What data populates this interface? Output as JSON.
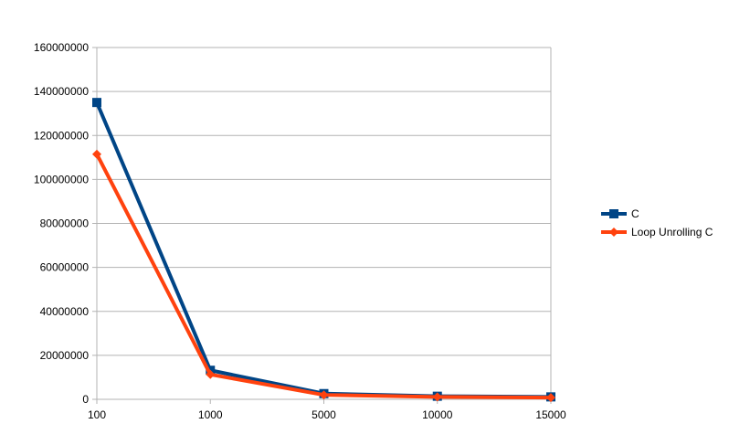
{
  "chart_data": {
    "type": "line",
    "title": "",
    "xlabel": "",
    "ylabel": "",
    "categories": [
      "100",
      "1000",
      "5000",
      "10000",
      "15000"
    ],
    "ylim": [
      0,
      160000000
    ],
    "yticks": [
      0,
      20000000,
      40000000,
      60000000,
      80000000,
      100000000,
      120000000,
      140000000,
      160000000
    ],
    "ytick_labels": [
      "0",
      "20000000",
      "40000000",
      "60000000",
      "80000000",
      "100000000",
      "120000000",
      "140000000",
      "160000000"
    ],
    "grid": true,
    "legend": "right",
    "series": [
      {
        "name": "C",
        "color": "#004586",
        "marker": "square",
        "values": [
          135000000,
          13200000,
          2600000,
          1400000,
          1100000
        ]
      },
      {
        "name": "Loop Unrolling C",
        "color": "#ff420e",
        "marker": "diamond",
        "values": [
          111500000,
          11300000,
          2000000,
          1100000,
          800000
        ]
      }
    ]
  }
}
